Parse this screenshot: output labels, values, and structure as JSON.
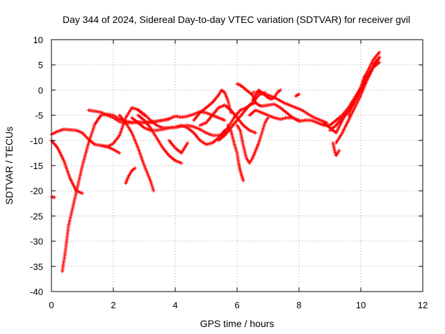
{
  "chart_data": {
    "type": "scatter",
    "title": "Day 344 of 2024, Sidereal Day-to-day VTEC variation (SDTVAR) for receiver gvil",
    "xlabel": "GPS time / hours",
    "ylabel": "SDTVAR / TECUs",
    "xlim": [
      0,
      12
    ],
    "ylim": [
      -40,
      10
    ],
    "xticks": [
      0,
      2,
      4,
      6,
      8,
      10,
      12
    ],
    "yticks": [
      -40,
      -35,
      -30,
      -25,
      -20,
      -15,
      -10,
      -5,
      0,
      5,
      10
    ],
    "grid": true,
    "legend": "none",
    "marker": "+",
    "color": "#ff0000",
    "series": [
      {
        "x": [
          0.0,
          0.1
        ],
        "y": [
          -21.2,
          -21.3
        ]
      },
      {
        "x": [
          0.0,
          0.2,
          0.4,
          0.6,
          0.8,
          1.0,
          1.2,
          1.4,
          1.6,
          1.8,
          2.0,
          2.2,
          2.4,
          2.6,
          2.8,
          3.0
        ],
        "y": [
          -8.8,
          -8.2,
          -7.8,
          -7.9,
          -8.0,
          -8.5,
          -9.8,
          -10.8,
          -11.0,
          -11.3,
          -10.6,
          -9.0,
          -5.5,
          -3.5,
          -3.9,
          -5.0
        ]
      },
      {
        "x": [
          0.0,
          0.2,
          0.4,
          0.6,
          0.8,
          1.0
        ],
        "y": [
          -10.0,
          -11.5,
          -14.0,
          -17.5,
          -20.0,
          -20.5
        ]
      },
      {
        "x": [
          0.35,
          0.45,
          0.55,
          0.7,
          0.85,
          1.0,
          1.2,
          1.4,
          1.6,
          1.8,
          2.0,
          2.2,
          2.4,
          2.6,
          2.8,
          3.0,
          3.2,
          3.4,
          3.6,
          3.8
        ],
        "y": [
          -36.0,
          -32.0,
          -27.0,
          -23.0,
          -19.0,
          -15.0,
          -10.5,
          -6.8,
          -5.0,
          -4.8,
          -5.0,
          -5.8,
          -6.2,
          -6.4,
          -6.5,
          -6.4,
          -6.3,
          -6.2,
          -6.0,
          -5.8
        ]
      },
      {
        "x": [
          1.2,
          1.4,
          1.6,
          1.8,
          2.0,
          2.2,
          2.4,
          2.6,
          2.8,
          3.0,
          3.2,
          3.4,
          3.6,
          3.8,
          4.0,
          4.2,
          4.4,
          4.6,
          4.8,
          5.0,
          5.2,
          5.4,
          5.6
        ],
        "y": [
          -4.0,
          -4.2,
          -4.4,
          -5.0,
          -5.5,
          -6.3,
          -6.5,
          -6.5,
          -6.3,
          -6.5,
          -6.5,
          -6.2,
          -6.0,
          -5.7,
          -5.2,
          -5.4,
          -5.2,
          -4.8,
          -4.3,
          -4.5,
          -5.0,
          -5.5,
          -6.0
        ]
      },
      {
        "x": [
          1.6,
          1.8,
          2.0,
          2.2
        ],
        "y": [
          -11.0,
          -11.2,
          -11.8,
          -12.5
        ]
      },
      {
        "x": [
          2.4,
          2.5,
          2.6,
          2.7
        ],
        "y": [
          -18.5,
          -17.0,
          -16.0,
          -15.5
        ]
      },
      {
        "x": [
          2.2,
          2.4,
          2.6,
          2.8,
          3.0,
          3.2,
          3.3
        ],
        "y": [
          -5.0,
          -6.5,
          -8.5,
          -11.5,
          -15.0,
          -18.0,
          -20.0
        ]
      },
      {
        "x": [
          2.8,
          3.0,
          3.2,
          3.4,
          3.6,
          3.8,
          4.0,
          4.2
        ],
        "y": [
          -5.0,
          -6.0,
          -7.5,
          -9.5,
          -11.5,
          -13.0,
          -14.0,
          -14.5
        ]
      },
      {
        "x": [
          2.6,
          2.8,
          3.0,
          3.2,
          3.4,
          3.6,
          3.8,
          4.0,
          4.2,
          4.4,
          4.6,
          4.8,
          5.0,
          5.2,
          5.4,
          5.6
        ],
        "y": [
          -5.5,
          -6.5,
          -7.5,
          -8.0,
          -8.0,
          -7.8,
          -7.5,
          -7.4,
          -7.0,
          -7.5,
          -8.5,
          -10.0,
          -10.8,
          -10.5,
          -9.5,
          -8.0
        ]
      },
      {
        "x": [
          2.8,
          3.0,
          3.2,
          3.4,
          3.6,
          3.8,
          4.0,
          4.2,
          4.4,
          4.6,
          4.8,
          5.0,
          5.2,
          5.4,
          5.6
        ],
        "y": [
          -4.0,
          -4.8,
          -6.0,
          -7.0,
          -7.5,
          -7.5,
          -7.4,
          -7.2,
          -7.0,
          -7.3,
          -7.8,
          -8.5,
          -9.0,
          -9.0,
          -8.8
        ]
      },
      {
        "x": [
          3.8,
          4.0,
          4.2,
          4.4
        ],
        "y": [
          -10.0,
          -11.5,
          -12.5,
          -10.5
        ]
      },
      {
        "x": [
          4.6,
          4.8,
          5.0,
          5.2,
          5.4,
          5.5,
          5.6,
          5.7,
          5.8
        ],
        "y": [
          -6.0,
          -4.5,
          -3.5,
          -2.5,
          -1.0,
          0.0,
          -0.5,
          -2.0,
          -4.5
        ]
      },
      {
        "x": [
          4.8,
          5.0,
          5.2,
          5.4,
          5.6,
          5.8,
          6.0,
          6.2,
          6.4,
          6.6
        ],
        "y": [
          -7.0,
          -6.5,
          -5.0,
          -3.5,
          -3.0,
          -4.0,
          -5.5,
          -7.0,
          -8.0,
          -8.5
        ]
      },
      {
        "x": [
          5.4,
          5.6,
          5.8,
          6.0,
          6.2,
          6.4,
          6.6
        ],
        "y": [
          -10.0,
          -9.0,
          -7.5,
          -6.0,
          -4.5,
          -3.0,
          -2.5
        ]
      },
      {
        "x": [
          5.5,
          5.7,
          5.9,
          6.1,
          6.3,
          6.5,
          6.7,
          6.9
        ],
        "y": [
          -9.0,
          -7.5,
          -5.5,
          -4.0,
          -3.5,
          -2.5,
          -1.0,
          -0.5
        ]
      },
      {
        "x": [
          5.7,
          5.8,
          5.9,
          6.0,
          6.05,
          6.1,
          6.15,
          6.2
        ],
        "y": [
          -7.0,
          -8.0,
          -10.5,
          -12.5,
          -14.5,
          -16.0,
          -17.0,
          -18.0
        ]
      },
      {
        "x": [
          6.0,
          6.1,
          6.2,
          6.3,
          6.4,
          6.5,
          6.6,
          6.7,
          6.8,
          6.9,
          7.0
        ],
        "y": [
          -7.0,
          -8.0,
          -11.0,
          -13.5,
          -14.5,
          -13.5,
          -12.0,
          -10.5,
          -8.5,
          -6.5,
          -5.5
        ]
      },
      {
        "x": [
          6.0,
          6.1,
          6.2,
          6.3,
          6.4,
          6.5,
          6.6,
          6.7,
          6.8,
          7.0,
          7.2,
          7.4,
          7.6,
          7.8,
          8.0,
          8.2
        ],
        "y": [
          1.2,
          1.0,
          0.5,
          0.0,
          -0.5,
          -1.0,
          -2.5,
          -3.0,
          -3.2,
          -3.0,
          -2.8,
          -3.5,
          -4.5,
          -5.5,
          -6.2,
          -6.0
        ]
      },
      {
        "x": [
          6.4,
          6.6,
          6.8,
          7.0,
          7.2,
          7.4,
          7.6,
          7.8,
          8.0
        ],
        "y": [
          -5.0,
          -4.0,
          -4.5,
          -5.0,
          -5.5,
          -5.8,
          -5.5,
          -5.5,
          -6.0
        ]
      },
      {
        "x": [
          6.5,
          6.7,
          6.9,
          7.1,
          7.3,
          7.5,
          7.7,
          7.9,
          8.1,
          8.3,
          8.5,
          8.7,
          8.9
        ],
        "y": [
          -0.5,
          -0.5,
          -0.8,
          -1.2,
          -1.8,
          -2.5,
          -3.0,
          -3.5,
          -4.0,
          -4.8,
          -5.5,
          -6.0,
          -6.5
        ]
      },
      {
        "x": [
          6.5,
          6.6,
          6.7,
          6.8,
          6.9,
          7.0,
          7.1,
          7.2,
          7.3,
          7.4
        ],
        "y": [
          -2.0,
          -1.0,
          0.0,
          -0.5,
          -1.0,
          -1.5,
          -1.8,
          -1.5,
          -0.5,
          0.0
        ]
      },
      {
        "x": [
          7.9,
          8.0
        ],
        "y": [
          -1.2,
          -0.8
        ]
      },
      {
        "x": [
          8.2,
          8.4,
          8.6,
          8.8,
          9.0,
          9.2,
          9.4,
          9.6,
          9.8,
          10.0,
          10.2,
          10.4,
          10.6
        ],
        "y": [
          -6.0,
          -6.0,
          -6.5,
          -7.0,
          -7.0,
          -6.0,
          -5.0,
          -3.5,
          -1.5,
          0.5,
          2.5,
          4.5,
          5.5
        ]
      },
      {
        "x": [
          8.8,
          9.0,
          9.2,
          9.4,
          9.6,
          9.8,
          10.0,
          10.2,
          10.4,
          10.6
        ],
        "y": [
          -6.5,
          -7.5,
          -8.5,
          -6.0,
          -4.0,
          -2.0,
          0.0,
          2.0,
          4.5,
          6.5
        ]
      },
      {
        "x": [
          9.0,
          9.2,
          9.4,
          9.6,
          9.8,
          10.0,
          10.2,
          10.4,
          10.6
        ],
        "y": [
          -8.0,
          -7.0,
          -5.5,
          -4.0,
          -2.5,
          0.5,
          3.5,
          6.0,
          7.5
        ]
      },
      {
        "x": [
          9.1,
          9.15,
          9.2,
          9.3
        ],
        "y": [
          -10.5,
          -12.0,
          -13.0,
          -12.0
        ]
      },
      {
        "x": [
          9.2,
          9.4,
          9.6,
          9.8,
          10.0,
          10.2,
          10.4,
          10.6
        ],
        "y": [
          -10.5,
          -8.5,
          -6.0,
          -3.5,
          -1.0,
          2.0,
          5.0,
          6.5
        ]
      },
      {
        "x": [
          9.6,
          9.7,
          9.8,
          9.9,
          10.0,
          10.1,
          10.2
        ],
        "y": [
          -5.0,
          -3.5,
          -2.0,
          -1.0,
          0.5,
          2.5,
          3.5
        ]
      }
    ]
  }
}
